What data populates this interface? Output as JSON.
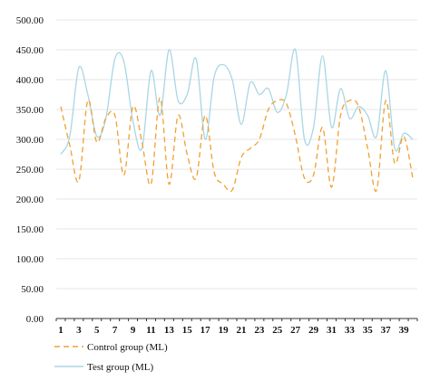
{
  "chart_data": {
    "type": "line",
    "title": "",
    "xlabel": "",
    "ylabel": "",
    "ylim": [
      0,
      500
    ],
    "y_ticks": [
      "0.00",
      "50.00",
      "100.00",
      "150.00",
      "200.00",
      "250.00",
      "300.00",
      "350.00",
      "400.00",
      "450.00",
      "500.00"
    ],
    "x_ticks": [
      "1",
      "3",
      "5",
      "7",
      "9",
      "11",
      "13",
      "15",
      "17",
      "19",
      "21",
      "23",
      "25",
      "27",
      "29",
      "31",
      "33",
      "35",
      "37",
      "39"
    ],
    "grid": "horizontal",
    "legend_position": "bottom-left",
    "x": [
      1,
      2,
      3,
      4,
      5,
      6,
      7,
      8,
      9,
      10,
      11,
      12,
      13,
      14,
      15,
      16,
      17,
      18,
      19,
      20,
      21,
      22,
      23,
      24,
      25,
      26,
      27,
      28,
      29,
      30,
      31,
      32,
      33,
      34,
      35,
      36,
      37,
      38,
      39,
      40
    ],
    "series": [
      {
        "name": "Control group (ML)",
        "color": "#f0a030",
        "style": "dashed",
        "values": [
          355,
          290,
          230,
          365,
          295,
          335,
          340,
          240,
          355,
          295,
          225,
          370,
          225,
          340,
          275,
          235,
          340,
          245,
          225,
          215,
          270,
          285,
          300,
          350,
          365,
          360,
          305,
          235,
          240,
          320,
          220,
          340,
          365,
          355,
          285,
          215,
          365,
          260,
          305,
          235
        ]
      },
      {
        "name": "Test group (ML)",
        "color": "#a8d6e6",
        "style": "solid",
        "values": [
          275,
          305,
          420,
          375,
          305,
          335,
          435,
          430,
          330,
          285,
          415,
          340,
          450,
          365,
          375,
          435,
          300,
          405,
          425,
          400,
          325,
          395,
          375,
          385,
          345,
          375,
          450,
          300,
          320,
          440,
          320,
          385,
          335,
          355,
          340,
          305,
          415,
          285,
          310,
          300
        ]
      }
    ]
  }
}
